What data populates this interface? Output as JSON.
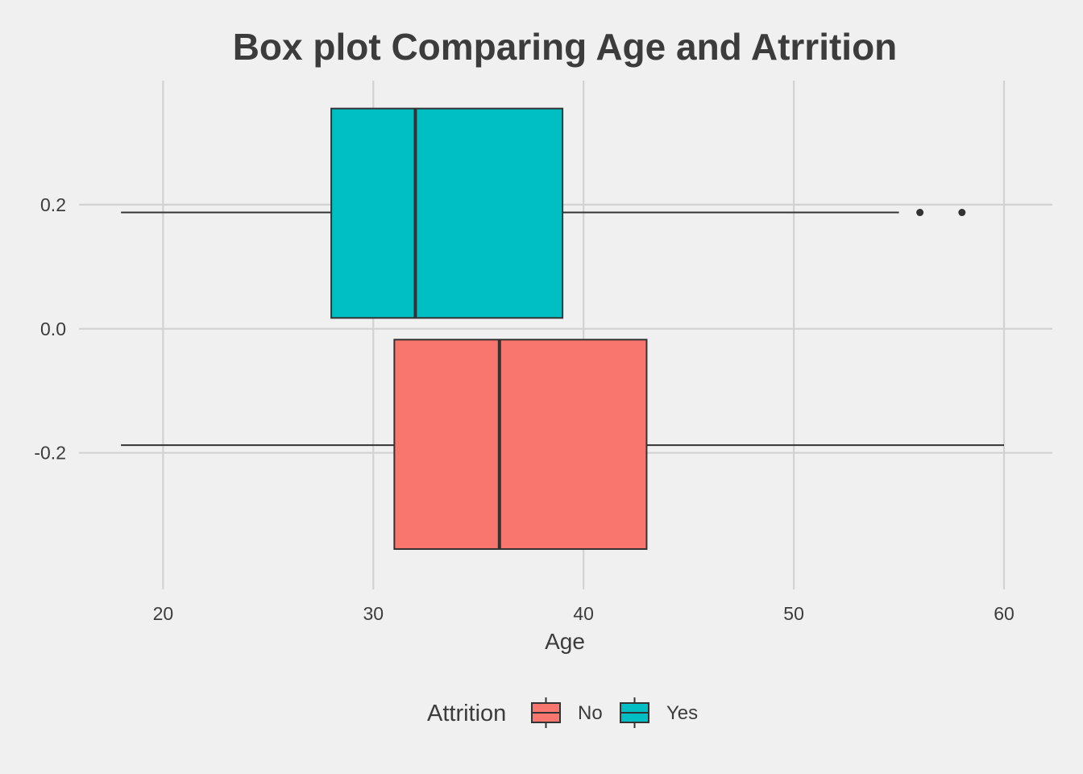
{
  "chart_data": {
    "type": "boxplot",
    "title": "Box plot Comparing Age and Atrrition",
    "xlabel": "Age",
    "ylabel": "",
    "xlim": [
      16,
      62.3
    ],
    "ylim": [
      -0.42,
      0.4
    ],
    "x_ticks": [
      20,
      30,
      40,
      50,
      60
    ],
    "x_tick_labels": [
      "20",
      "30",
      "40",
      "50",
      "60"
    ],
    "y_ticks": [
      0.2,
      0.0,
      -0.2
    ],
    "y_tick_labels": [
      "0.2",
      "0.0",
      "-0.2"
    ],
    "grid": true,
    "legend": {
      "title": "Attrition",
      "position": "bottom",
      "entries": [
        "No",
        "Yes"
      ]
    },
    "series": [
      {
        "name": "No",
        "color": "#F8766D",
        "y_center": -0.1875,
        "y_band": [
          -0.355,
          -0.0175
        ],
        "whisker_low": 18,
        "q1": 31,
        "median": 36,
        "q3": 43,
        "whisker_high": 60,
        "outliers": []
      },
      {
        "name": "Yes",
        "color": "#00BFC4",
        "y_center": 0.1875,
        "y_band": [
          0.0175,
          0.355
        ],
        "whisker_low": 18,
        "q1": 28,
        "median": 32,
        "q3": 39,
        "whisker_high": 55,
        "outliers": [
          56,
          58
        ]
      }
    ]
  },
  "colors": {
    "background": "#f0f0f0",
    "grid": "#d2d2d2",
    "text": "#3c3c3c",
    "outline": "#333333"
  }
}
